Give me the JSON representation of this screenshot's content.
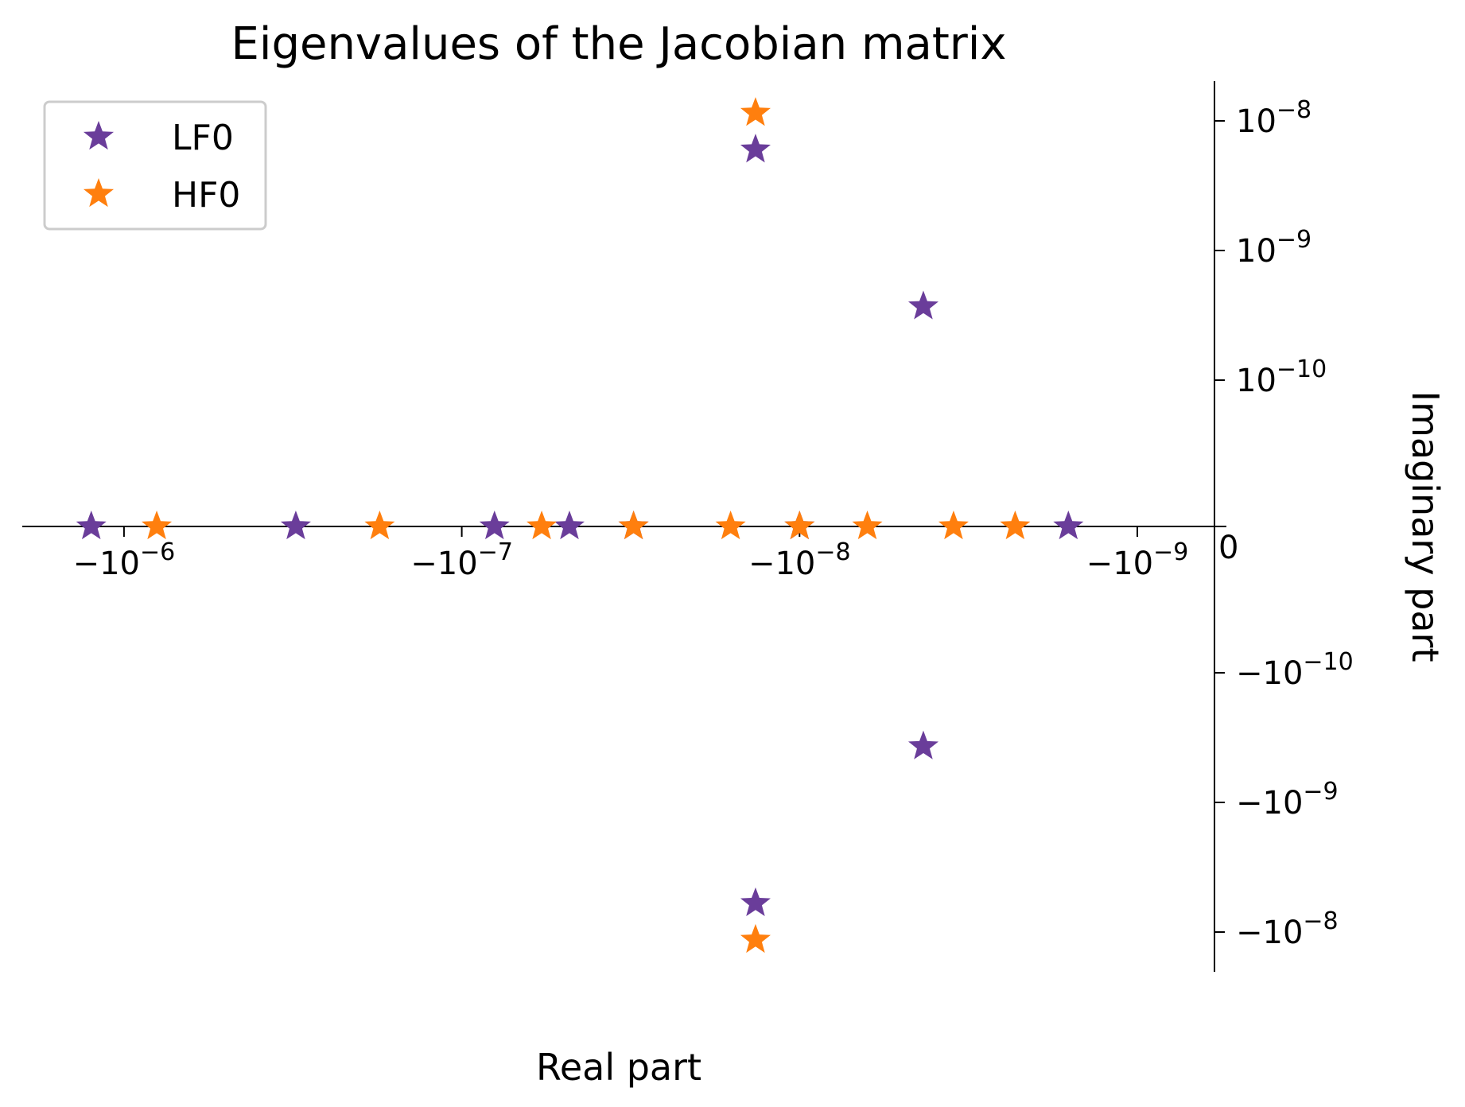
{
  "chart_data": {
    "type": "scatter",
    "title": "Eigenvalues of the Jacobian matrix",
    "xlabel": "Real part",
    "ylabel": "Imaginary part",
    "xscale": "symlog",
    "yscale": "symlog",
    "x_ticks": [
      {
        "value": -1e-06,
        "base": "−10",
        "exp": "−6"
      },
      {
        "value": -1e-07,
        "base": "−10",
        "exp": "−7"
      },
      {
        "value": -1e-08,
        "base": "−10",
        "exp": "−8"
      },
      {
        "value": -1e-09,
        "base": "−10",
        "exp": "−9"
      }
    ],
    "y_ticks": [
      {
        "value": 1e-08,
        "base": "10",
        "exp": "−8"
      },
      {
        "value": 1e-09,
        "base": "10",
        "exp": "−9"
      },
      {
        "value": 1e-10,
        "base": "10",
        "exp": "−10"
      },
      {
        "value": -1e-10,
        "base": "−10",
        "exp": "−10"
      },
      {
        "value": -1e-09,
        "base": "−10",
        "exp": "−9"
      },
      {
        "value": -1e-08,
        "base": "−10",
        "exp": "−8"
      }
    ],
    "zero_label": "0",
    "legend_position": "upper-left",
    "grid": false,
    "marker": "star",
    "series": [
      {
        "name": "LF0",
        "color": "#6a3d9a",
        "points": [
          {
            "x": -1.25e-06,
            "y": 0
          },
          {
            "x": -3.1e-07,
            "y": 0
          },
          {
            "x": -8e-08,
            "y": 0
          },
          {
            "x": -4.8e-08,
            "y": 0
          },
          {
            "x": -3.1e-08,
            "y": 0
          },
          {
            "x": -1.35e-08,
            "y": 6e-09
          },
          {
            "x": -1.35e-08,
            "y": -6e-09
          },
          {
            "x": -1e-08,
            "y": 0
          },
          {
            "x": -4.3e-09,
            "y": 3.7e-10
          },
          {
            "x": -4.3e-09,
            "y": -3.7e-10
          },
          {
            "x": -1.6e-09,
            "y": 0
          }
        ]
      },
      {
        "name": "HF0",
        "color": "#ff7f0e",
        "points": [
          {
            "x": -8e-07,
            "y": 0
          },
          {
            "x": -1.75e-07,
            "y": 0
          },
          {
            "x": -5.8e-08,
            "y": 0
          },
          {
            "x": -3.1e-08,
            "y": 0
          },
          {
            "x": -1.6e-08,
            "y": 0
          },
          {
            "x": -1.35e-08,
            "y": 1.15e-08
          },
          {
            "x": -1.35e-08,
            "y": -1.15e-08
          },
          {
            "x": -1e-08,
            "y": 0
          },
          {
            "x": -6.3e-09,
            "y": 0
          },
          {
            "x": -3.5e-09,
            "y": 0
          },
          {
            "x": -2.3e-09,
            "y": 0
          }
        ]
      }
    ]
  }
}
